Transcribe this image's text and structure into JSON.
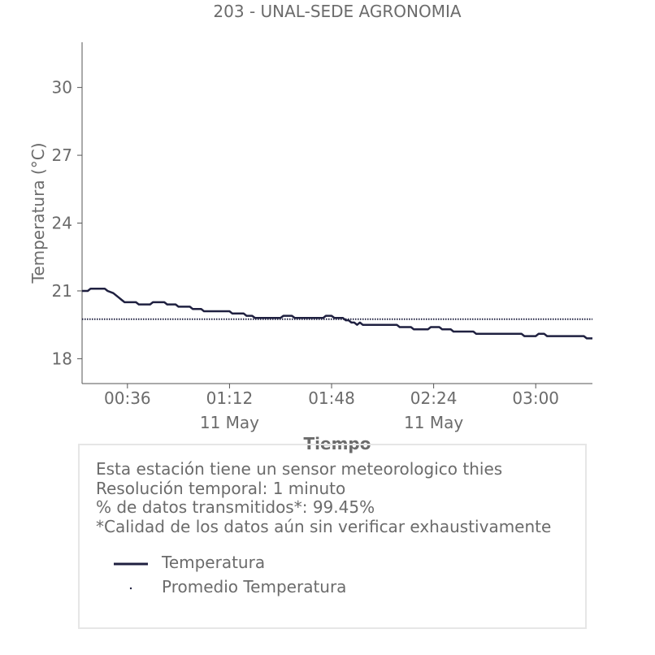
{
  "chart_data": {
    "type": "line",
    "title": "203 - UNAL-SEDE AGRONOMIA",
    "xlabel": "Tiempo",
    "ylabel": "Temperatura (°C)",
    "ylim": [
      16.9,
      32.0
    ],
    "y_ticks": [
      18,
      21,
      24,
      27,
      30
    ],
    "x_range": [
      "00:20",
      "03:20"
    ],
    "x_ticks": [
      {
        "time": "00:36",
        "label": "00:36",
        "date": ""
      },
      {
        "time": "01:12",
        "label": "01:12",
        "date": "11 May"
      },
      {
        "time": "01:48",
        "label": "01:48",
        "date": ""
      },
      {
        "time": "02:24",
        "label": "02:24",
        "date": "11 May"
      },
      {
        "time": "03:00",
        "label": "03:00",
        "date": ""
      }
    ],
    "grid": false,
    "series": [
      {
        "name": "Temperatura",
        "color": "#1f2040",
        "style": "solid",
        "points": [
          [
            "00:20",
            21.0
          ],
          [
            "00:22",
            21.0
          ],
          [
            "00:23",
            21.1
          ],
          [
            "00:28",
            21.1
          ],
          [
            "00:29",
            21.0
          ],
          [
            "00:31",
            20.9
          ],
          [
            "00:33",
            20.7
          ],
          [
            "00:34",
            20.6
          ],
          [
            "00:35",
            20.5
          ],
          [
            "00:39",
            20.5
          ],
          [
            "00:40",
            20.4
          ],
          [
            "00:44",
            20.4
          ],
          [
            "00:45",
            20.5
          ],
          [
            "00:49",
            20.5
          ],
          [
            "00:50",
            20.4
          ],
          [
            "00:53",
            20.4
          ],
          [
            "00:54",
            20.3
          ],
          [
            "00:58",
            20.3
          ],
          [
            "00:59",
            20.2
          ],
          [
            "01:02",
            20.2
          ],
          [
            "01:03",
            20.1
          ],
          [
            "01:12",
            20.1
          ],
          [
            "01:13",
            20.0
          ],
          [
            "01:17",
            20.0
          ],
          [
            "01:18",
            19.9
          ],
          [
            "01:20",
            19.9
          ],
          [
            "01:21",
            19.8
          ],
          [
            "01:30",
            19.8
          ],
          [
            "01:31",
            19.9
          ],
          [
            "01:34",
            19.9
          ],
          [
            "01:35",
            19.8
          ],
          [
            "01:45",
            19.8
          ],
          [
            "01:46",
            19.9
          ],
          [
            "01:48",
            19.9
          ],
          [
            "01:49",
            19.8
          ],
          [
            "01:52",
            19.8
          ],
          [
            "01:53",
            19.7
          ],
          [
            "01:54",
            19.7
          ],
          [
            "01:55",
            19.6
          ],
          [
            "01:56",
            19.6
          ],
          [
            "01:57",
            19.5
          ],
          [
            "01:58",
            19.6
          ],
          [
            "01:59",
            19.5
          ],
          [
            "02:11",
            19.5
          ],
          [
            "02:12",
            19.4
          ],
          [
            "02:16",
            19.4
          ],
          [
            "02:17",
            19.3
          ],
          [
            "02:22",
            19.3
          ],
          [
            "02:23",
            19.4
          ],
          [
            "02:26",
            19.4
          ],
          [
            "02:27",
            19.3
          ],
          [
            "02:30",
            19.3
          ],
          [
            "02:31",
            19.2
          ],
          [
            "02:38",
            19.2
          ],
          [
            "02:39",
            19.1
          ],
          [
            "02:55",
            19.1
          ],
          [
            "02:56",
            19.0
          ],
          [
            "03:00",
            19.0
          ],
          [
            "03:01",
            19.1
          ],
          [
            "03:03",
            19.1
          ],
          [
            "03:04",
            19.0
          ],
          [
            "03:17",
            19.0
          ],
          [
            "03:18",
            18.9
          ],
          [
            "03:20",
            18.9
          ]
        ]
      },
      {
        "name": "Promedio Temperatura",
        "color": "#1f2040",
        "style": "dotted",
        "points": [
          [
            "00:20",
            19.75
          ],
          [
            "03:20",
            19.75
          ]
        ]
      }
    ]
  },
  "info": {
    "line1": "Esta estación tiene un sensor meteorologico thies",
    "line2": "Resolución temporal: 1 minuto",
    "line3": "% de datos transmitidos*: 99.45%",
    "line4": "*Calidad de los datos aún sin verificar exhaustivamente"
  },
  "legend": {
    "items": [
      {
        "label": "Temperatura",
        "color": "#1f2040",
        "marker": "line"
      },
      {
        "label": "Promedio Temperatura",
        "color": "#1f2040",
        "marker": "dot"
      }
    ]
  }
}
